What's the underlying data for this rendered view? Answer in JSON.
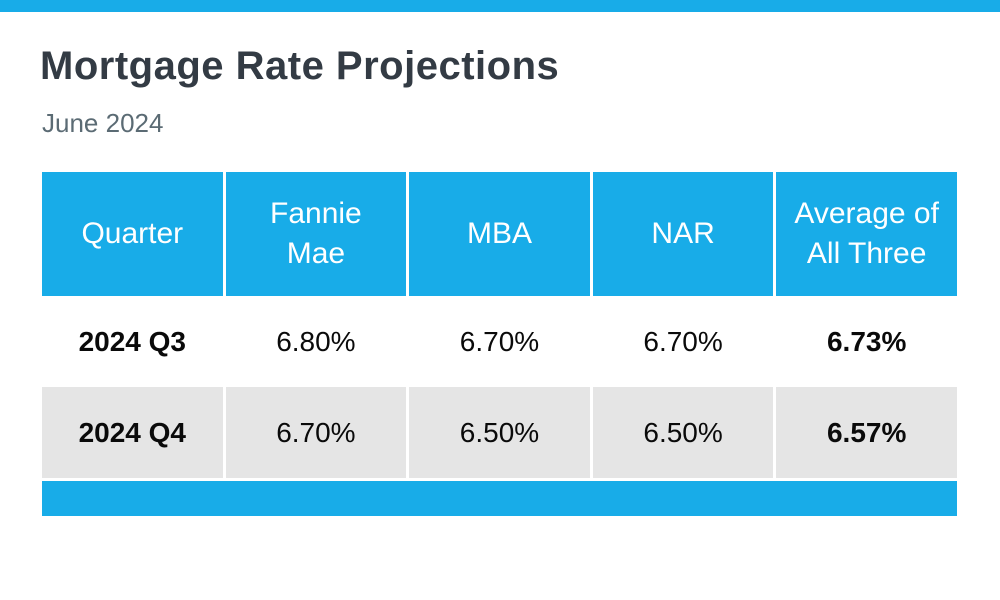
{
  "page": {
    "title": "Mortgage Rate Projections",
    "subtitle": "June 2024"
  },
  "colors": {
    "accent_blue": "#18ACE8",
    "row_gray": "#E5E5E5",
    "title_dark": "#333B44",
    "subtitle_gray": "#5B6B74",
    "cell_text": "#0A0A0A",
    "header_text": "#FFFFFF"
  },
  "chart_data": {
    "type": "table",
    "title": "Mortgage Rate Projections",
    "subtitle": "June 2024",
    "columns": [
      "Quarter",
      "Fannie Mae",
      "MBA",
      "NAR",
      "Average of All Three"
    ],
    "rows": [
      {
        "quarter": "2024 Q3",
        "fannie_mae": "6.80%",
        "mba": "6.70%",
        "nar": "6.70%",
        "average": "6.73%"
      },
      {
        "quarter": "2024 Q4",
        "fannie_mae": "6.70%",
        "mba": "6.50%",
        "nar": "6.50%",
        "average": "6.57%"
      }
    ],
    "layout_hints": {
      "header_background": "accent_blue",
      "alternating_row_background": "row_gray",
      "bold_columns": [
        "Quarter",
        "Average of All Three"
      ],
      "footer_bar": true,
      "top_accent_bar": true
    }
  }
}
